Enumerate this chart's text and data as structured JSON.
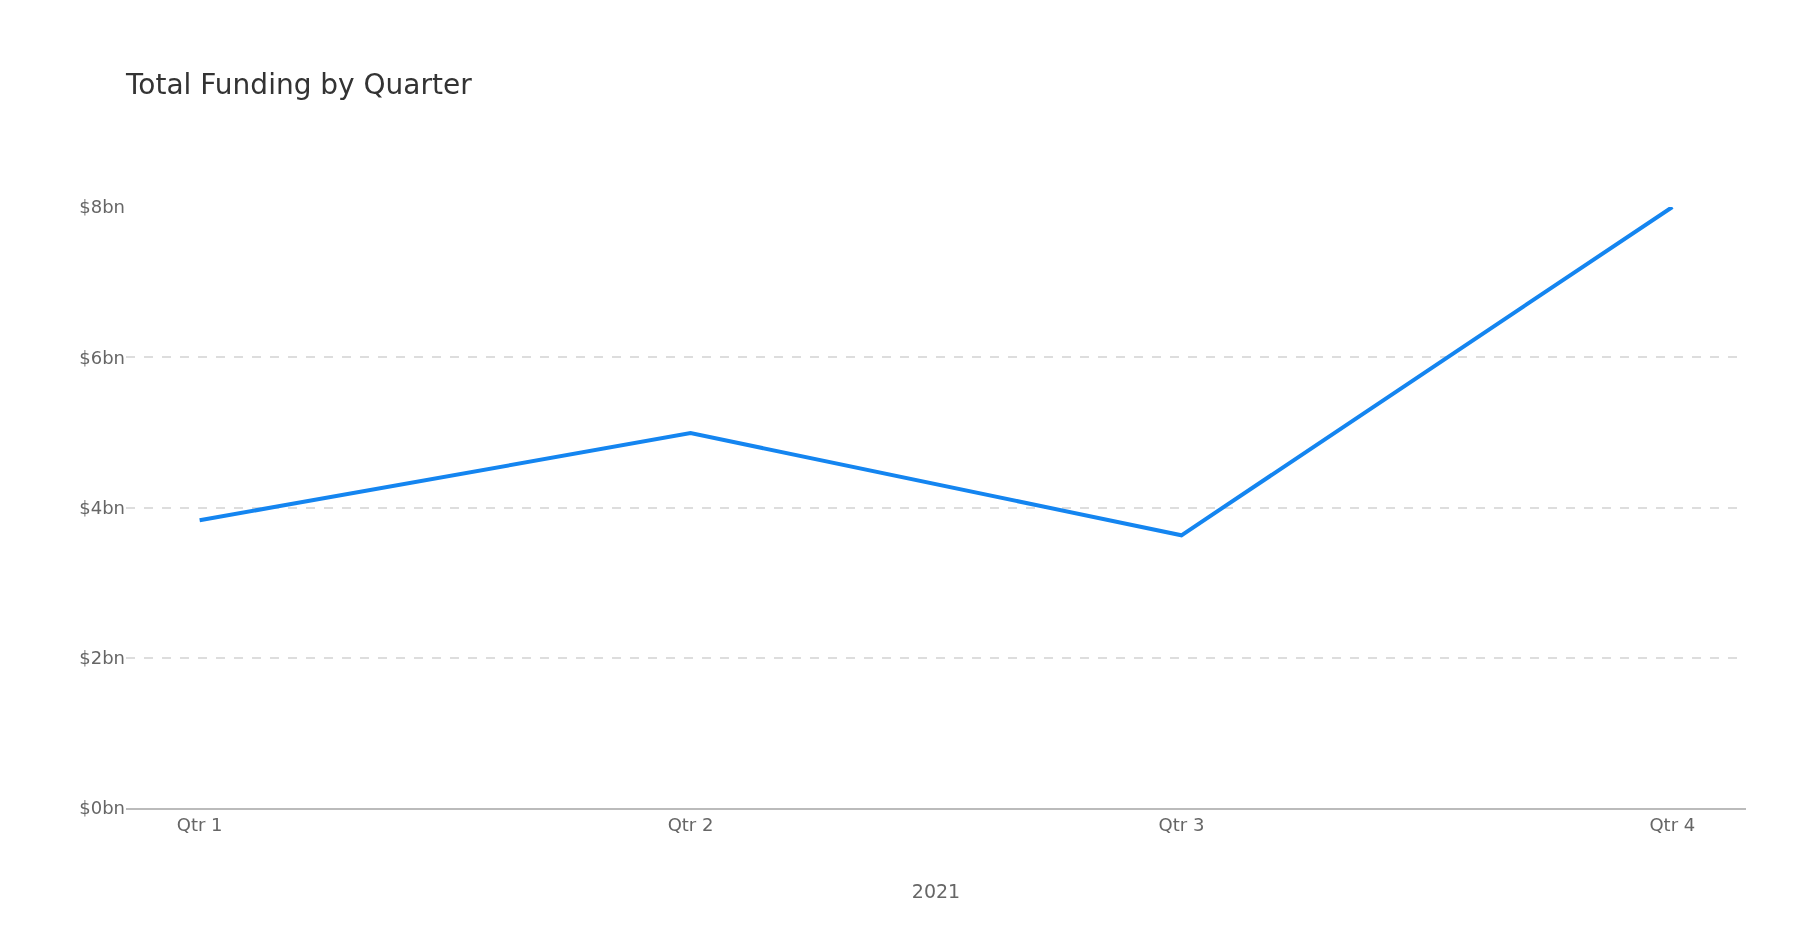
{
  "chart_data": {
    "type": "line",
    "title": "Total Funding by Quarter",
    "xlabel": "2021",
    "categories": [
      "Qtr 1",
      "Qtr 2",
      "Qtr 3",
      "Qtr 4"
    ],
    "series": [
      {
        "color": "#1485f0",
        "values": [
          3.83,
          4.99,
          3.63,
          8.0
        ]
      }
    ],
    "ylim": [
      0,
      8
    ],
    "yticks": [
      {
        "value": 0,
        "label": "$0bn"
      },
      {
        "value": 2,
        "label": "$2bn"
      },
      {
        "value": 4,
        "label": "$4bn"
      },
      {
        "value": 6,
        "label": "$6bn"
      },
      {
        "value": 8,
        "label": "$8bn"
      }
    ],
    "grid": "y",
    "legend": false,
    "marker": "none",
    "line_style": "solid"
  }
}
